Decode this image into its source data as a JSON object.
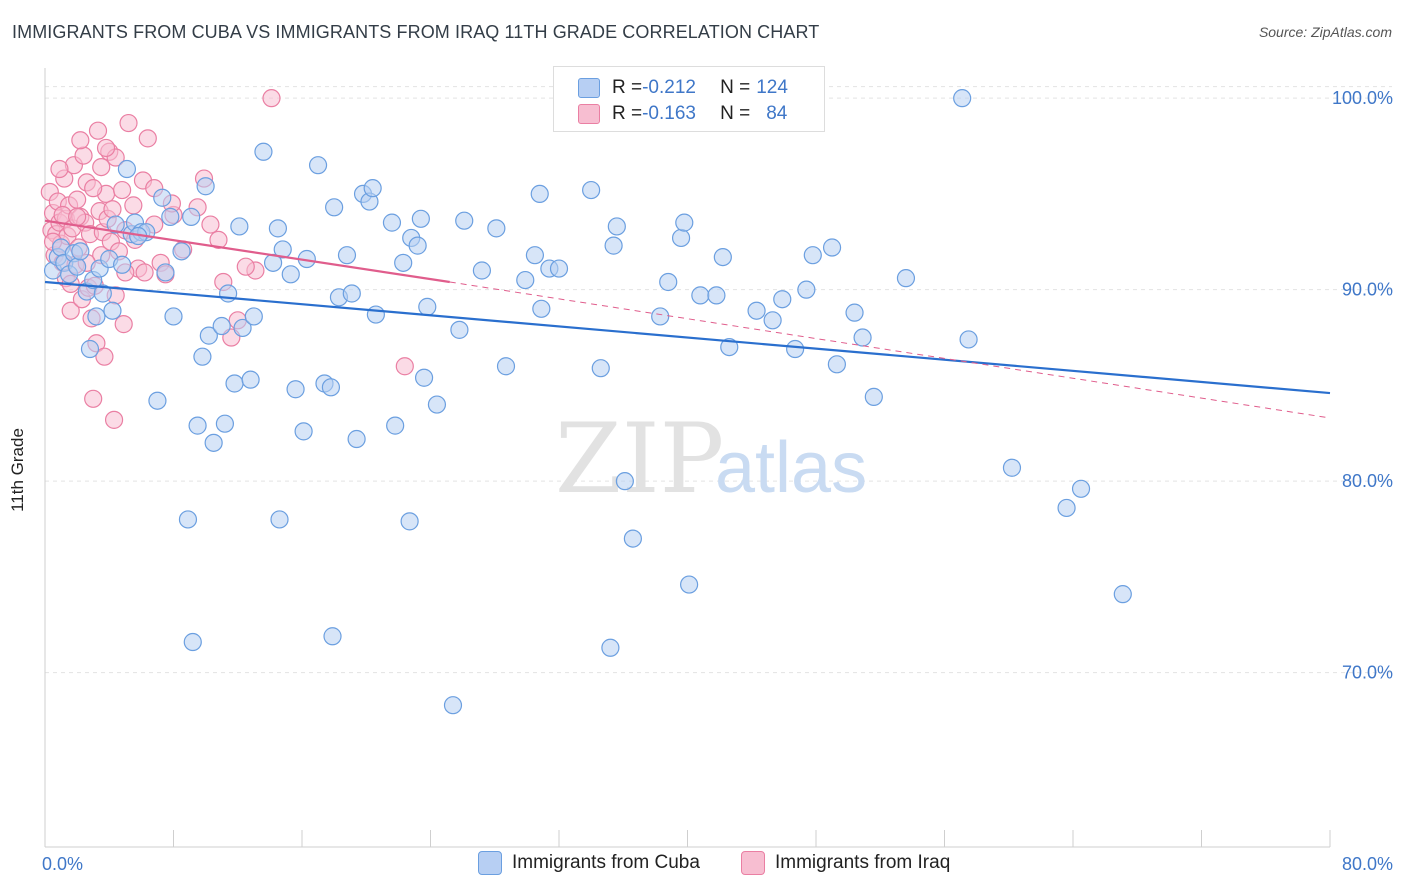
{
  "title": "IMMIGRANTS FROM CUBA VS IMMIGRANTS FROM IRAQ 11TH GRADE CORRELATION CHART",
  "source": "Source: ZipAtlas.com",
  "watermark": {
    "zip": "ZIP",
    "atlas": "atlas"
  },
  "colors": {
    "cuba": "#6b9fe0",
    "cuba_fill": "#b7cff3",
    "iraq": "#ea7fa3",
    "iraq_fill": "#f7bed1",
    "cuba_line": "#2a6fce",
    "iraq_line": "#e05d8c",
    "axis_label": "#3f77c8"
  },
  "legend_top": {
    "rows": [
      {
        "r_label": "R = ",
        "r_value": "-0.212",
        "n_label": "N = ",
        "n_value": "124"
      },
      {
        "r_label": "R = ",
        "r_value": "-0.163",
        "n_label": "N = ",
        "n_value": "84"
      }
    ]
  },
  "legend_bottom": {
    "cuba": "Immigrants from Cuba",
    "iraq": "Immigrants from Iraq"
  },
  "chart_data": {
    "type": "scatter",
    "ylabel": "11th Grade",
    "xlabel": "",
    "xlim": [
      0,
      80
    ],
    "ylim": [
      61,
      101
    ],
    "x_tick_labels": [
      "0.0%",
      "80.0%"
    ],
    "y_ticks": [
      70,
      80,
      90,
      100
    ],
    "y_tick_labels": [
      "70.0%",
      "80.0%",
      "90.0%",
      "100.0%"
    ],
    "grid": true,
    "series": [
      {
        "name": "Immigrants from Cuba",
        "r": -0.212,
        "n": 124,
        "trend": {
          "x": [
            0,
            80
          ],
          "y": [
            90.4,
            84.6
          ]
        },
        "points": [
          [
            0.5,
            91.0
          ],
          [
            0.8,
            91.7
          ],
          [
            1.0,
            92.2
          ],
          [
            1.2,
            91.4
          ],
          [
            1.5,
            90.8
          ],
          [
            1.8,
            91.9
          ],
          [
            2.0,
            91.2
          ],
          [
            2.2,
            92.0
          ],
          [
            2.6,
            89.9
          ],
          [
            2.8,
            86.9
          ],
          [
            3.0,
            90.5
          ],
          [
            3.2,
            88.6
          ],
          [
            3.4,
            91.1
          ],
          [
            3.6,
            89.8
          ],
          [
            4.0,
            91.6
          ],
          [
            4.2,
            88.9
          ],
          [
            4.4,
            93.4
          ],
          [
            4.8,
            91.3
          ],
          [
            5.1,
            96.3
          ],
          [
            5.4,
            92.9
          ],
          [
            5.6,
            93.5
          ],
          [
            6.0,
            93.0
          ],
          [
            6.3,
            93.0
          ],
          [
            7.0,
            84.2
          ],
          [
            7.3,
            94.8
          ],
          [
            7.5,
            90.9
          ],
          [
            7.8,
            93.8
          ],
          [
            8.0,
            88.6
          ],
          [
            8.5,
            92.0
          ],
          [
            8.9,
            78.0
          ],
          [
            9.1,
            93.8
          ],
          [
            9.5,
            82.9
          ],
          [
            9.8,
            86.5
          ],
          [
            10.0,
            95.4
          ],
          [
            10.2,
            87.6
          ],
          [
            10.5,
            82.0
          ],
          [
            11.0,
            88.1
          ],
          [
            11.2,
            83.0
          ],
          [
            11.4,
            89.8
          ],
          [
            11.8,
            85.1
          ],
          [
            12.1,
            93.3
          ],
          [
            12.3,
            88.0
          ],
          [
            12.8,
            85.3
          ],
          [
            13.0,
            88.6
          ],
          [
            13.6,
            97.2
          ],
          [
            14.2,
            91.4
          ],
          [
            14.5,
            93.2
          ],
          [
            14.8,
            92.1
          ],
          [
            15.3,
            90.8
          ],
          [
            15.6,
            84.8
          ],
          [
            16.1,
            82.6
          ],
          [
            16.3,
            91.6
          ],
          [
            17.0,
            96.5
          ],
          [
            17.4,
            85.1
          ],
          [
            17.8,
            84.9
          ],
          [
            18.0,
            94.3
          ],
          [
            18.3,
            89.6
          ],
          [
            18.8,
            91.8
          ],
          [
            19.1,
            89.8
          ],
          [
            19.4,
            82.2
          ],
          [
            19.8,
            95.0
          ],
          [
            20.2,
            94.6
          ],
          [
            20.4,
            95.3
          ],
          [
            20.6,
            88.7
          ],
          [
            21.6,
            93.5
          ],
          [
            21.8,
            82.9
          ],
          [
            22.3,
            91.4
          ],
          [
            22.8,
            92.7
          ],
          [
            23.2,
            92.3
          ],
          [
            23.4,
            93.7
          ],
          [
            23.6,
            85.4
          ],
          [
            23.8,
            89.1
          ],
          [
            24.4,
            84.0
          ],
          [
            25.4,
            68.3
          ],
          [
            25.8,
            87.9
          ],
          [
            26.1,
            93.6
          ],
          [
            27.2,
            91.0
          ],
          [
            28.1,
            93.2
          ],
          [
            28.7,
            86.0
          ],
          [
            29.9,
            90.5
          ],
          [
            30.5,
            91.8
          ],
          [
            30.8,
            95.0
          ],
          [
            30.9,
            89.0
          ],
          [
            31.4,
            91.1
          ],
          [
            32.0,
            91.1
          ],
          [
            34.0,
            95.2
          ],
          [
            34.6,
            85.9
          ],
          [
            35.2,
            71.3
          ],
          [
            35.4,
            92.3
          ],
          [
            35.6,
            93.3
          ],
          [
            36.1,
            80.0
          ],
          [
            36.6,
            77.0
          ],
          [
            38.3,
            88.6
          ],
          [
            38.8,
            90.4
          ],
          [
            39.6,
            92.7
          ],
          [
            39.8,
            93.5
          ],
          [
            40.1,
            74.6
          ],
          [
            40.8,
            89.7
          ],
          [
            41.8,
            89.7
          ],
          [
            42.2,
            91.7
          ],
          [
            42.6,
            87.0
          ],
          [
            44.3,
            88.9
          ],
          [
            45.3,
            88.4
          ],
          [
            45.9,
            89.5
          ],
          [
            46.7,
            86.9
          ],
          [
            47.4,
            90.0
          ],
          [
            47.8,
            91.8
          ],
          [
            49.0,
            92.2
          ],
          [
            49.3,
            86.1
          ],
          [
            50.4,
            88.8
          ],
          [
            50.9,
            87.5
          ],
          [
            51.6,
            84.4
          ],
          [
            53.6,
            90.6
          ],
          [
            57.1,
            100.0
          ],
          [
            57.5,
            87.4
          ],
          [
            60.2,
            80.7
          ],
          [
            63.6,
            78.6
          ],
          [
            64.5,
            79.6
          ],
          [
            67.1,
            74.1
          ],
          [
            9.2,
            71.6
          ],
          [
            17.9,
            71.9
          ],
          [
            14.6,
            78.0
          ],
          [
            22.7,
            77.9
          ],
          [
            5.8,
            92.8
          ]
        ]
      },
      {
        "name": "Immigrants from Iraq",
        "r": -0.163,
        "n": 84,
        "trend": {
          "x": [
            0,
            25.2
          ],
          "y": [
            93.6,
            90.4
          ]
        },
        "trend_dashed": {
          "x": [
            25.2,
            80
          ],
          "y": [
            90.4,
            83.3
          ]
        },
        "points": [
          [
            0.3,
            95.1
          ],
          [
            0.4,
            93.1
          ],
          [
            0.5,
            94.0
          ],
          [
            0.6,
            91.8
          ],
          [
            0.7,
            92.9
          ],
          [
            0.8,
            94.6
          ],
          [
            0.9,
            93.5
          ],
          [
            1.0,
            92.4
          ],
          [
            1.1,
            91.4
          ],
          [
            1.2,
            95.8
          ],
          [
            1.3,
            93.7
          ],
          [
            1.4,
            92.8
          ],
          [
            1.5,
            94.4
          ],
          [
            1.6,
            88.9
          ],
          [
            1.7,
            93.2
          ],
          [
            1.8,
            96.5
          ],
          [
            1.9,
            91.3
          ],
          [
            2.0,
            94.7
          ],
          [
            2.1,
            92.2
          ],
          [
            2.2,
            93.8
          ],
          [
            2.3,
            89.5
          ],
          [
            2.4,
            97.0
          ],
          [
            2.5,
            93.5
          ],
          [
            2.6,
            95.6
          ],
          [
            2.7,
            90.1
          ],
          [
            2.8,
            92.9
          ],
          [
            2.9,
            88.5
          ],
          [
            3.0,
            84.3
          ],
          [
            3.1,
            90.2
          ],
          [
            3.2,
            87.2
          ],
          [
            3.3,
            98.3
          ],
          [
            3.4,
            94.1
          ],
          [
            3.5,
            91.8
          ],
          [
            3.6,
            93.0
          ],
          [
            3.7,
            86.5
          ],
          [
            3.8,
            95.0
          ],
          [
            3.9,
            93.7
          ],
          [
            4.0,
            97.2
          ],
          [
            4.1,
            92.5
          ],
          [
            4.2,
            94.2
          ],
          [
            4.3,
            83.2
          ],
          [
            4.4,
            96.9
          ],
          [
            4.6,
            92.0
          ],
          [
            4.8,
            95.2
          ],
          [
            5.0,
            93.1
          ],
          [
            5.2,
            98.7
          ],
          [
            5.5,
            94.4
          ],
          [
            5.8,
            91.1
          ],
          [
            6.1,
            95.7
          ],
          [
            6.4,
            97.9
          ],
          [
            6.8,
            93.4
          ],
          [
            7.2,
            91.4
          ],
          [
            7.5,
            90.8
          ],
          [
            8.0,
            93.9
          ],
          [
            9.5,
            94.3
          ],
          [
            9.9,
            95.8
          ],
          [
            10.3,
            93.4
          ],
          [
            11.1,
            90.4
          ],
          [
            11.6,
            87.5
          ],
          [
            12.0,
            88.4
          ],
          [
            13.1,
            91.0
          ],
          [
            14.1,
            100.0
          ],
          [
            22.4,
            86.0
          ],
          [
            5.0,
            90.9
          ],
          [
            3.5,
            96.4
          ],
          [
            2.2,
            97.8
          ],
          [
            6.8,
            95.3
          ],
          [
            1.3,
            90.6
          ],
          [
            4.9,
            88.2
          ],
          [
            7.9,
            94.5
          ],
          [
            2.6,
            91.4
          ],
          [
            0.9,
            96.3
          ],
          [
            1.6,
            90.3
          ],
          [
            4.4,
            89.7
          ],
          [
            3.0,
            95.3
          ],
          [
            5.6,
            92.6
          ],
          [
            6.2,
            90.9
          ],
          [
            8.6,
            92.1
          ],
          [
            10.8,
            92.6
          ],
          [
            12.5,
            91.2
          ],
          [
            0.5,
            92.5
          ],
          [
            1.1,
            93.9
          ],
          [
            2.0,
            93.8
          ],
          [
            3.8,
            97.4
          ]
        ]
      }
    ]
  }
}
